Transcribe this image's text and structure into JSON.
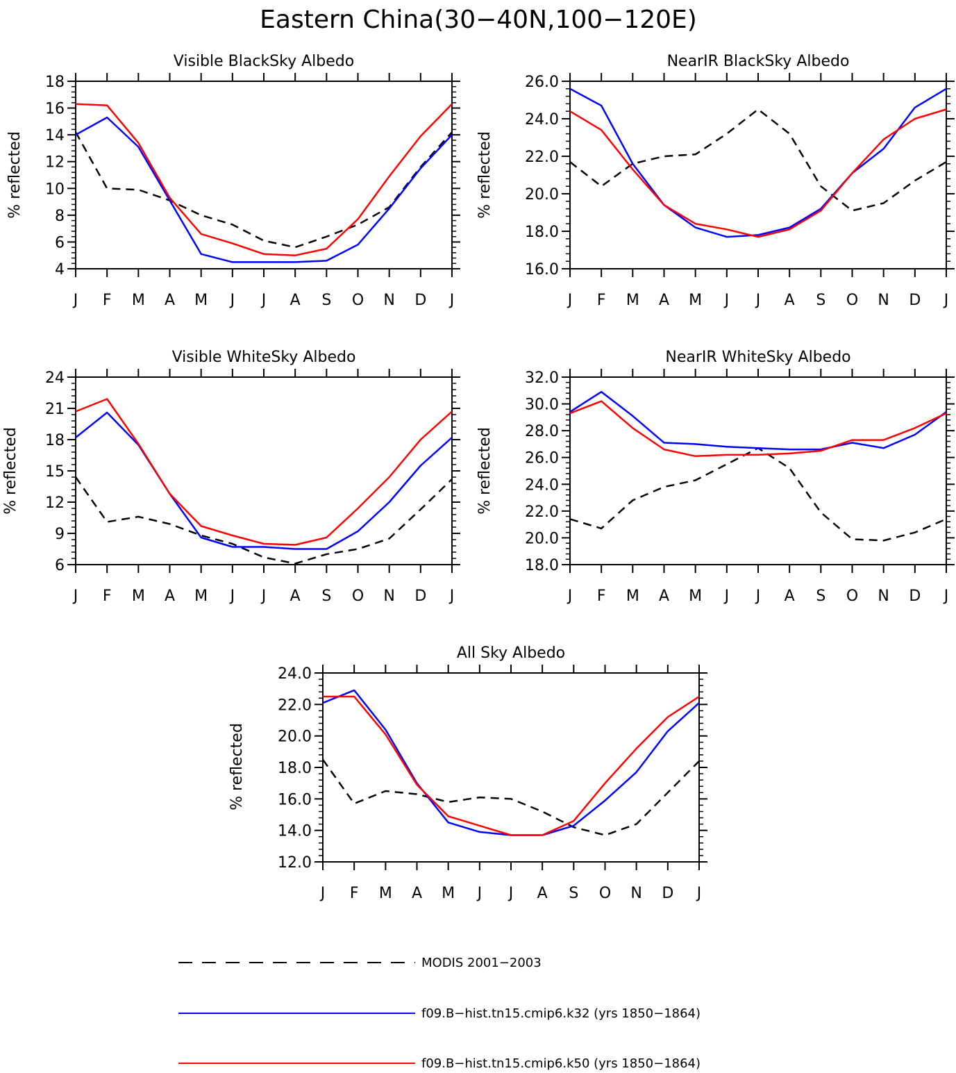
{
  "title": "Eastern China(30−40N,100−120E)",
  "colors": {
    "modis": "#000000",
    "k32": "#0000ff",
    "k50": "#ff0000"
  },
  "legend": [
    {
      "key": "modis",
      "label": "MODIS 2001−2003",
      "dashed": true
    },
    {
      "key": "k32",
      "label": "f09.B−hist.tn15.cmip6.k32 (yrs 1850−1864)",
      "dashed": false
    },
    {
      "key": "k50",
      "label": "f09.B−hist.tn15.cmip6.k50 (yrs 1850−1864)",
      "dashed": false
    }
  ],
  "chart_data": [
    {
      "type": "line",
      "title": "Visible BlackSky Albedo",
      "ylabel": "% reflected",
      "categories": [
        "J",
        "F",
        "M",
        "A",
        "M",
        "J",
        "J",
        "A",
        "S",
        "O",
        "N",
        "D",
        "J"
      ],
      "ylim": [
        4,
        18
      ],
      "yticks": [
        4,
        6,
        8,
        10,
        12,
        14,
        16,
        18
      ],
      "ytick_labels": [
        "4",
        "6",
        "8",
        "10",
        "12",
        "14",
        "16",
        "18"
      ],
      "series": [
        {
          "key": "modis",
          "name": "MODIS 2001−2003",
          "values": [
            14.2,
            10.0,
            9.9,
            9.1,
            8.0,
            7.3,
            6.1,
            5.6,
            6.4,
            7.3,
            8.6,
            11.6,
            14.2
          ]
        },
        {
          "key": "k32",
          "name": "f09.B−hist.tn15.cmip6.k32 (yrs 1850−1864)",
          "values": [
            14.0,
            15.3,
            13.1,
            9.1,
            5.1,
            4.5,
            4.5,
            4.5,
            4.6,
            5.8,
            8.5,
            11.5,
            14.0
          ]
        },
        {
          "key": "k50",
          "name": "f09.B−hist.tn15.cmip6.k50 (yrs 1850−1864)",
          "values": [
            16.3,
            16.2,
            13.4,
            9.3,
            6.6,
            5.9,
            5.1,
            5.0,
            5.5,
            7.7,
            10.9,
            13.9,
            16.3
          ]
        }
      ]
    },
    {
      "type": "line",
      "title": "NearIR BlackSky Albedo",
      "ylabel": "% reflected",
      "categories": [
        "J",
        "F",
        "M",
        "A",
        "M",
        "J",
        "J",
        "A",
        "S",
        "O",
        "N",
        "D",
        "J"
      ],
      "ylim": [
        16,
        26
      ],
      "yticks": [
        16,
        18,
        20,
        22,
        24,
        26
      ],
      "ytick_labels": [
        "16.0",
        "18.0",
        "20.0",
        "22.0",
        "24.0",
        "26.0"
      ],
      "series": [
        {
          "key": "modis",
          "name": "MODIS 2001−2003",
          "values": [
            21.7,
            20.4,
            21.6,
            22.0,
            22.1,
            23.2,
            24.5,
            23.2,
            20.4,
            19.1,
            19.5,
            20.7,
            21.7
          ]
        },
        {
          "key": "k32",
          "name": "f09.B−hist.tn15.cmip6.k32 (yrs 1850−1864)",
          "values": [
            25.6,
            24.7,
            21.6,
            19.4,
            18.2,
            17.7,
            17.8,
            18.2,
            19.2,
            21.1,
            22.4,
            24.6,
            25.6
          ]
        },
        {
          "key": "k50",
          "name": "f09.B−hist.tn15.cmip6.k50 (yrs 1850−1864)",
          "values": [
            24.4,
            23.4,
            21.3,
            19.4,
            18.4,
            18.1,
            17.7,
            18.1,
            19.1,
            21.1,
            22.9,
            24.0,
            24.5
          ]
        }
      ]
    },
    {
      "type": "line",
      "title": "Visible WhiteSky Albedo",
      "ylabel": "% reflected",
      "categories": [
        "J",
        "F",
        "M",
        "A",
        "M",
        "J",
        "J",
        "A",
        "S",
        "O",
        "N",
        "D",
        "J"
      ],
      "ylim": [
        6,
        24
      ],
      "yticks": [
        6,
        9,
        12,
        15,
        18,
        21,
        24
      ],
      "ytick_labels": [
        "6",
        "9",
        "12",
        "15",
        "18",
        "21",
        "24"
      ],
      "series": [
        {
          "key": "modis",
          "name": "MODIS 2001−2003",
          "values": [
            14.4,
            10.1,
            10.6,
            9.9,
            8.8,
            8.0,
            6.7,
            6.1,
            7.0,
            7.5,
            8.5,
            11.3,
            14.2
          ]
        },
        {
          "key": "k32",
          "name": "f09.B−hist.tn15.cmip6.k32 (yrs 1850−1864)",
          "values": [
            18.2,
            20.6,
            17.5,
            12.8,
            8.6,
            7.7,
            7.7,
            7.5,
            7.5,
            9.2,
            12.0,
            15.5,
            18.2
          ]
        },
        {
          "key": "k50",
          "name": "f09.B−hist.tn15.cmip6.k50 (yrs 1850−1864)",
          "values": [
            20.7,
            21.9,
            17.6,
            12.8,
            9.7,
            8.8,
            8.0,
            7.9,
            8.6,
            11.4,
            14.4,
            18.0,
            20.7
          ]
        }
      ]
    },
    {
      "type": "line",
      "title": "NearIR WhiteSky Albedo",
      "ylabel": "% reflected",
      "categories": [
        "J",
        "F",
        "M",
        "A",
        "M",
        "J",
        "J",
        "A",
        "S",
        "O",
        "N",
        "D",
        "J"
      ],
      "ylim": [
        18,
        32
      ],
      "yticks": [
        18,
        20,
        22,
        24,
        26,
        28,
        30,
        32
      ],
      "ytick_labels": [
        "18.0",
        "20.0",
        "22.0",
        "24.0",
        "26.0",
        "28.0",
        "30.0",
        "32.0"
      ],
      "series": [
        {
          "key": "modis",
          "name": "MODIS 2001−2003",
          "values": [
            21.4,
            20.7,
            22.8,
            23.8,
            24.3,
            25.5,
            26.7,
            25.2,
            21.9,
            19.9,
            19.8,
            20.4,
            21.4
          ]
        },
        {
          "key": "k32",
          "name": "f09.B−hist.tn15.cmip6.k32 (yrs 1850−1864)",
          "values": [
            29.4,
            30.9,
            29.1,
            27.1,
            27.0,
            26.8,
            26.7,
            26.6,
            26.6,
            27.1,
            26.7,
            27.7,
            29.4
          ]
        },
        {
          "key": "k50",
          "name": "f09.B−hist.tn15.cmip6.k50 (yrs 1850−1864)",
          "values": [
            29.3,
            30.2,
            28.2,
            26.6,
            26.1,
            26.2,
            26.2,
            26.3,
            26.5,
            27.3,
            27.3,
            28.2,
            29.3
          ]
        }
      ]
    },
    {
      "type": "line",
      "title": "All Sky Albedo",
      "ylabel": "% reflected",
      "categories": [
        "J",
        "F",
        "M",
        "A",
        "M",
        "J",
        "J",
        "A",
        "S",
        "O",
        "N",
        "D",
        "J"
      ],
      "ylim": [
        12,
        24
      ],
      "yticks": [
        12,
        14,
        16,
        18,
        20,
        22,
        24
      ],
      "ytick_labels": [
        "12.0",
        "14.0",
        "16.0",
        "18.0",
        "20.0",
        "22.0",
        "24.0"
      ],
      "series": [
        {
          "key": "modis",
          "name": "MODIS 2001−2003",
          "values": [
            18.5,
            15.7,
            16.5,
            16.3,
            15.8,
            16.1,
            16.0,
            15.2,
            14.2,
            13.7,
            14.4,
            16.4,
            18.4
          ]
        },
        {
          "key": "k32",
          "name": "f09.B−hist.tn15.cmip6.k32 (yrs 1850−1864)",
          "values": [
            22.1,
            22.9,
            20.4,
            17.0,
            14.5,
            13.9,
            13.7,
            13.7,
            14.3,
            15.9,
            17.7,
            20.3,
            22.1
          ]
        },
        {
          "key": "k50",
          "name": "f09.B−hist.tn15.cmip6.k50 (yrs 1850−1864)",
          "values": [
            22.5,
            22.5,
            20.1,
            16.9,
            14.9,
            14.3,
            13.7,
            13.7,
            14.6,
            17.0,
            19.2,
            21.2,
            22.5
          ]
        }
      ]
    }
  ]
}
